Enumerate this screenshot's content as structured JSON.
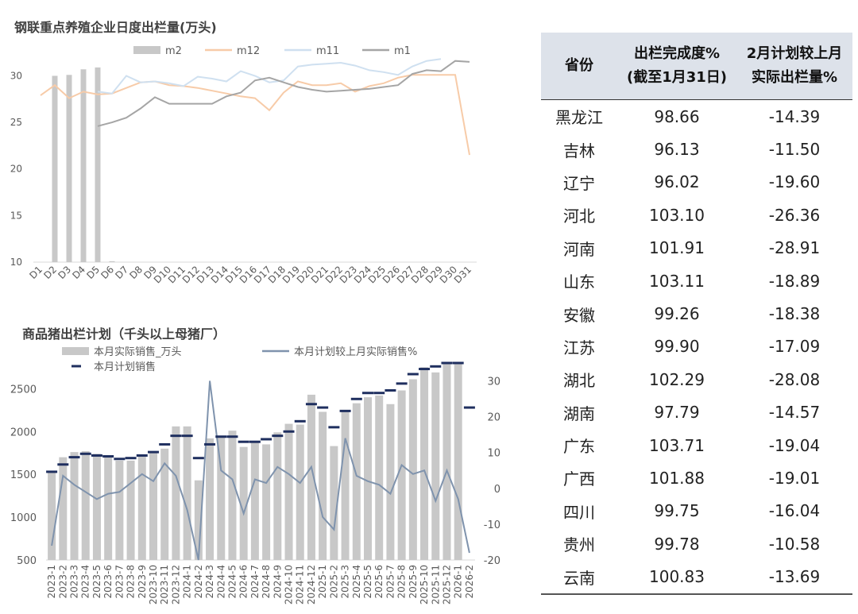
{
  "chart1_title": "钢联重点养殖企业日度出栏量(万头)",
  "chart2_title": "商品猪出栏计划（千头以上母猪厂）",
  "colors": {
    "bar_grey": "#c8c8c8",
    "m12": "#f7cba8",
    "m11": "#cfe0f0",
    "m1": "#a5a5a5",
    "plan_line": "#7f93ad",
    "plan_marker": "#1f2f5f",
    "table_header_bg": "#dde2ea"
  },
  "chart_data": [
    {
      "type": "bar",
      "title": "钢联重点养殖企业日度出栏量(万头)",
      "categories": [
        "D1",
        "D2",
        "D3",
        "D4",
        "D5",
        "D6",
        "D7",
        "D8",
        "D9",
        "D10",
        "D11",
        "D12",
        "D13",
        "D14",
        "D15",
        "D16",
        "D17",
        "D18",
        "D19",
        "D20",
        "D21",
        "D22",
        "D23",
        "D24",
        "D25",
        "D26",
        "D27",
        "D28",
        "D29",
        "D30",
        "D31"
      ],
      "ylim": [
        10,
        32
      ],
      "yticks": [
        10,
        15,
        20,
        25,
        30
      ],
      "legend": [
        "m2",
        "m12",
        "m11",
        "m1"
      ],
      "legend_position": "top",
      "series": [
        {
          "name": "m2",
          "kind": "bar",
          "values": [
            null,
            30.0,
            30.1,
            30.7,
            30.9,
            10.1,
            null,
            null,
            null,
            null,
            null,
            null,
            null,
            null,
            null,
            null,
            null,
            null,
            null,
            null,
            null,
            null,
            null,
            null,
            null,
            null,
            null,
            null,
            null,
            null,
            null
          ]
        },
        {
          "name": "m12",
          "kind": "line",
          "values": [
            27.9,
            29.0,
            27.6,
            28.3,
            28.0,
            28.1,
            28.7,
            29.3,
            29.4,
            29.0,
            28.9,
            28.7,
            28.4,
            28.1,
            27.8,
            27.6,
            26.3,
            28.2,
            29.4,
            29.0,
            29.0,
            29.2,
            28.3,
            28.9,
            29.2,
            29.8,
            30.1,
            30.1,
            30.1,
            30.1,
            21.5
          ]
        },
        {
          "name": "m11",
          "kind": "line",
          "values": [
            null,
            null,
            null,
            null,
            28.3,
            28.1,
            30.0,
            29.3,
            29.4,
            29.2,
            28.9,
            29.9,
            29.7,
            29.4,
            30.5,
            30.0,
            29.3,
            29.5,
            31.0,
            31.2,
            31.3,
            31.4,
            31.1,
            30.6,
            30.4,
            30.1,
            31.0,
            31.6,
            31.8,
            null,
            null
          ]
        },
        {
          "name": "m1",
          "kind": "line",
          "values": [
            null,
            null,
            null,
            null,
            24.6,
            25.0,
            25.5,
            26.5,
            27.7,
            27.0,
            27.0,
            27.0,
            27.0,
            27.8,
            28.2,
            29.5,
            29.8,
            29.3,
            28.8,
            28.5,
            28.3,
            28.4,
            28.5,
            28.6,
            28.8,
            29.0,
            30.2,
            30.6,
            30.5,
            31.6,
            31.5
          ]
        }
      ]
    },
    {
      "type": "bar",
      "title": "商品猪出栏计划（千头以上母猪厂）",
      "categories": [
        "2023-1",
        "2023-2",
        "2023-3",
        "2023-4",
        "2023-5",
        "2023-6",
        "2023-7",
        "2023-8",
        "2023-9",
        "2023-10",
        "2023-11",
        "2023-12",
        "2024-1",
        "2024-2",
        "2024-3",
        "2024-4",
        "2024-5",
        "2024-6",
        "2024-7",
        "2024-8",
        "2024-9",
        "2024-10",
        "2024-11",
        "2024-12",
        "2025-1",
        "2025-2",
        "2025-3",
        "2025-4",
        "2025-5",
        "2025-6",
        "2025-7",
        "2025-8",
        "2025-9",
        "2025-10",
        "2025-11",
        "2025-12",
        "2026-1",
        "2026-2"
      ],
      "ylim_left": [
        500,
        2800
      ],
      "yticks_left": [
        500,
        1000,
        1500,
        2000,
        2500
      ],
      "ylim_right": [
        -20,
        35
      ],
      "yticks_right": [
        -20,
        -10,
        0,
        10,
        20,
        30
      ],
      "legend": [
        "本月实际销售_万头",
        "本月计划较上月实际销售%",
        "本月计划销售"
      ],
      "legend_position": "top",
      "series": [
        {
          "name": "本月实际销售_万头",
          "kind": "bar",
          "axis": "left",
          "values": [
            1530,
            1700,
            1760,
            1770,
            1740,
            1710,
            1660,
            1660,
            1710,
            1750,
            1800,
            2060,
            2060,
            1430,
            1920,
            1940,
            2010,
            1820,
            1870,
            1850,
            1990,
            2090,
            2080,
            2430,
            2230,
            1830,
            2230,
            2330,
            2400,
            2420,
            2320,
            2480,
            2610,
            2750,
            2690,
            2800,
            2800,
            null
          ]
        },
        {
          "name": "本月计划较上月实际销售%",
          "kind": "line",
          "axis": "right",
          "values": [
            -16,
            3.5,
            1.0,
            -1.0,
            -3.0,
            -1.5,
            -1.0,
            1.5,
            4.0,
            2.0,
            7.0,
            3.5,
            -6.0,
            -20.0,
            30.0,
            5.0,
            2.5,
            -7.0,
            2.5,
            1.5,
            6.0,
            4.0,
            1.5,
            6.0,
            -8.0,
            -11.5,
            14.0,
            3.5,
            2.0,
            1.0,
            -1.5,
            6.5,
            4.0,
            5.0,
            -3.5,
            5.0,
            -3.0,
            -18.0
          ]
        },
        {
          "name": "本月计划销售",
          "kind": "marker",
          "axis": "left",
          "values": [
            1530,
            1615,
            1700,
            1740,
            1720,
            1710,
            1680,
            1690,
            1720,
            1760,
            1850,
            1950,
            1950,
            1690,
            1850,
            1940,
            1940,
            1880,
            1880,
            1910,
            1950,
            2000,
            2120,
            2320,
            2280,
            2050,
            2240,
            2380,
            2450,
            2450,
            2480,
            2560,
            2670,
            2730,
            2760,
            2800,
            2800,
            2280
          ]
        }
      ]
    },
    {
      "type": "table",
      "columns": [
        "省份",
        "出栏完成度%\n(截至1月31日)",
        "2月计划较上月\n实际出栏量%"
      ],
      "rows": [
        [
          "黑龙江",
          "98.66",
          "-14.39"
        ],
        [
          "吉林",
          "96.13",
          "-11.50"
        ],
        [
          "辽宁",
          "96.02",
          "-19.60"
        ],
        [
          "河北",
          "103.10",
          "-26.36"
        ],
        [
          "河南",
          "101.91",
          "-28.91"
        ],
        [
          "山东",
          "103.11",
          "-18.89"
        ],
        [
          "安徽",
          "99.26",
          "-18.38"
        ],
        [
          "江苏",
          "99.90",
          "-17.09"
        ],
        [
          "湖北",
          "102.29",
          "-28.08"
        ],
        [
          "湖南",
          "97.79",
          "-14.57"
        ],
        [
          "广东",
          "103.71",
          "-19.04"
        ],
        [
          "广西",
          "101.88",
          "-19.01"
        ],
        [
          "四川",
          "99.75",
          "-16.04"
        ],
        [
          "贵州",
          "99.78",
          "-10.58"
        ],
        [
          "云南",
          "100.83",
          "-13.69"
        ]
      ]
    }
  ]
}
